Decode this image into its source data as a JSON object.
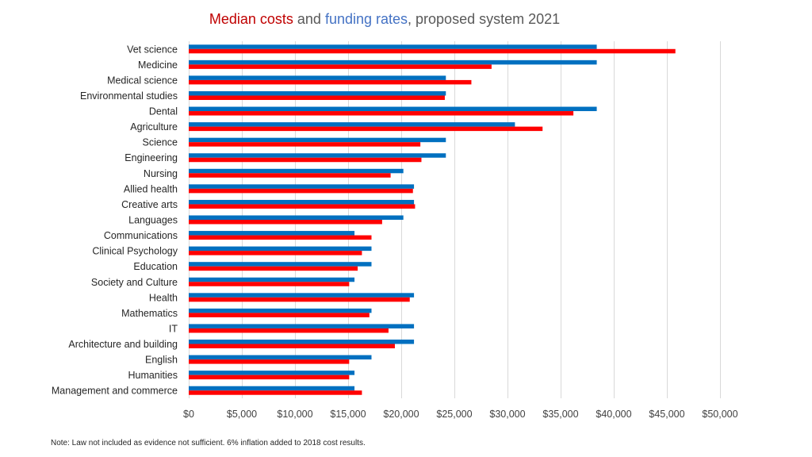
{
  "title": {
    "part1": "Median costs",
    "part2": " and ",
    "part3": "funding rates",
    "part4": ", proposed system 2021"
  },
  "note": "Note:  Law not  included as evidence not  sufficient. 6% inflation added to  2018 cost results.",
  "colors": {
    "median_costs": "#ff0000",
    "funding_rates": "#0070c0",
    "title_red": "#c00000",
    "title_blue": "#4472c4"
  },
  "chart_data": {
    "type": "bar",
    "orientation": "horizontal",
    "title": "Median costs and funding rates, proposed system 2021",
    "xlabel": "",
    "ylabel": "",
    "xlim": [
      0,
      50000
    ],
    "grid": true,
    "legend": "none (series identified by colored title words)",
    "x_ticks": [
      0,
      5000,
      10000,
      15000,
      20000,
      25000,
      30000,
      35000,
      40000,
      45000,
      50000
    ],
    "x_tick_labels": [
      "$0",
      "$5,000",
      "$10,000",
      "$15,000",
      "$20,000",
      "$25,000",
      "$30,000",
      "$35,000",
      "$40,000",
      "$45,000",
      "$50,000"
    ],
    "categories": [
      "Vet science",
      "Medicine",
      "Medical science",
      "Environmental studies",
      "Dental",
      "Agriculture",
      "Science",
      "Engineering",
      "Nursing",
      "Allied health",
      "Creative arts",
      "Languages",
      "Communications",
      "Clinical Psychology",
      "Education",
      "Society and Culture",
      "Health",
      "Mathematics",
      "IT",
      "Architecture and building",
      "English",
      "Humanities",
      "Management and commerce"
    ],
    "series": [
      {
        "name": "Funding rates",
        "color": "#0070c0",
        "values": [
          38400,
          38400,
          24200,
          24200,
          38400,
          30700,
          24200,
          24200,
          20200,
          21200,
          21200,
          20200,
          15600,
          17200,
          17200,
          15600,
          21200,
          17200,
          21200,
          21200,
          17200,
          15600,
          15600
        ]
      },
      {
        "name": "Median costs",
        "color": "#ff0000",
        "values": [
          45800,
          28500,
          26600,
          24100,
          36200,
          33300,
          21800,
          21900,
          19000,
          21100,
          21300,
          18200,
          17200,
          16300,
          15900,
          15100,
          20800,
          17000,
          18800,
          19400,
          15100,
          15100,
          16300
        ]
      }
    ]
  }
}
